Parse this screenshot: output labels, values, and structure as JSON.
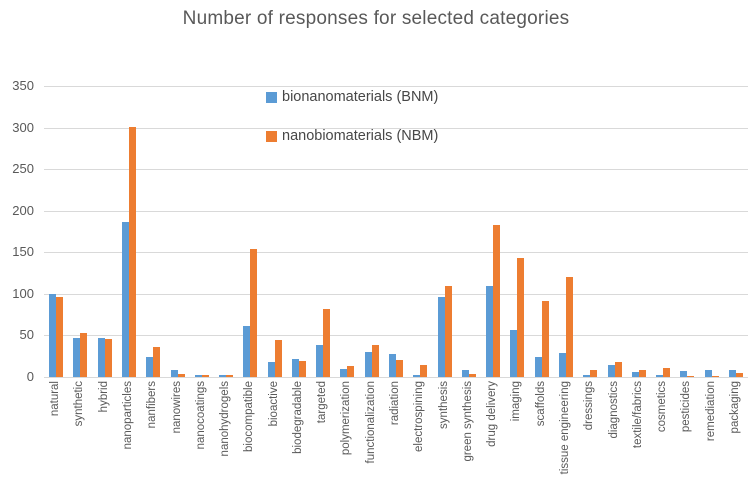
{
  "chart_data": {
    "type": "bar",
    "title": "Number of responses for selected categories",
    "xlabel": "",
    "ylabel": "",
    "ylim": [
      0,
      350
    ],
    "yticks": [
      0,
      50,
      100,
      150,
      200,
      250,
      300,
      350
    ],
    "grid": true,
    "legend_position": "top-center-inside",
    "categories": [
      "natural",
      "synthetic",
      "hybrid",
      "nanoparticles",
      "nanfibers",
      "nanowires",
      "nanocoatings",
      "nanohydrogels",
      "biocompatible",
      "bioactive",
      "biodegradable",
      "targeted",
      "polymerization",
      "functionalization",
      "radiation",
      "electrospining",
      "synthesis",
      "green synthesis",
      "drug delivery",
      "imaging",
      "scaffolds",
      "tissue engineering",
      "dressings",
      "diagnostics",
      "textile/fabrics",
      "cosmetics",
      "pesticides",
      "remediation",
      "packaging"
    ],
    "series": [
      {
        "name": "bionanomaterials (BNM)",
        "color": "#5B9BD5",
        "values": [
          100,
          47,
          47,
          187,
          24,
          9,
          3,
          3,
          62,
          18,
          22,
          38,
          10,
          30,
          28,
          3,
          96,
          8,
          110,
          56,
          24,
          29,
          3,
          14,
          6,
          3,
          7,
          8,
          8
        ]
      },
      {
        "name": "nanobiomaterials (NBM)",
        "color": "#ED7D31",
        "values": [
          96,
          53,
          46,
          301,
          36,
          4,
          2,
          2,
          154,
          45,
          19,
          82,
          13,
          38,
          20,
          14,
          109,
          4,
          183,
          143,
          91,
          120,
          8,
          18,
          8,
          11,
          1,
          1,
          5
        ]
      }
    ]
  },
  "colors": {
    "gridline": "#d9d9d9",
    "axis_text": "#595959",
    "title_text": "#595959",
    "legend_text": "#474747",
    "background": "#ffffff"
  }
}
